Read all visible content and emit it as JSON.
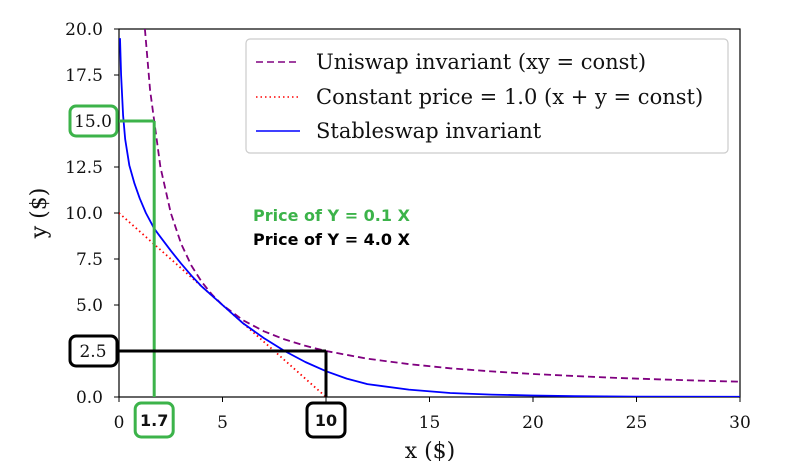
{
  "chart_data": {
    "type": "line",
    "xlabel": "x ($)",
    "ylabel": "y ($)",
    "xlim": [
      0,
      30
    ],
    "ylim": [
      0,
      20
    ],
    "x_ticks": [
      "0",
      "5",
      "10",
      "15",
      "20",
      "25",
      "30"
    ],
    "y_ticks": [
      "0.0",
      "2.5",
      "5.0",
      "7.5",
      "10.0",
      "12.5",
      "15.0",
      "17.5",
      "20.0"
    ],
    "grid": false,
    "legend_position": "top-right",
    "series": [
      {
        "name": "Uniswap invariant (xy = const)",
        "color": "#800080",
        "style": "dashed",
        "x": [
          1.25,
          1.5,
          2,
          2.5,
          3,
          3.5,
          4,
          4.5,
          5,
          6,
          7,
          8,
          9,
          10,
          12,
          14,
          16,
          18,
          20,
          22,
          24,
          26,
          28,
          30
        ],
        "values": [
          20.0,
          16.67,
          12.5,
          10.0,
          8.33,
          7.14,
          6.25,
          5.56,
          5.0,
          4.17,
          3.57,
          3.13,
          2.78,
          2.5,
          2.08,
          1.79,
          1.56,
          1.39,
          1.25,
          1.14,
          1.04,
          0.96,
          0.89,
          0.83
        ]
      },
      {
        "name": "Constant price = 1.0 (x + y = const)",
        "color": "#ff0000",
        "style": "dotted",
        "x": [
          0,
          10
        ],
        "values": [
          10.0,
          0.0
        ]
      },
      {
        "name": "Stableswap invariant",
        "color": "#0000ff",
        "style": "solid",
        "x": [
          0.05,
          0.1,
          0.2,
          0.3,
          0.5,
          0.75,
          1.0,
          1.3,
          1.7,
          2.0,
          2.5,
          3.0,
          3.5,
          4.0,
          5.0,
          6.0,
          7.0,
          8.0,
          9.0,
          10.0,
          11.0,
          12.0,
          14.0,
          16.0,
          18.0,
          20.0,
          22.0,
          25.0,
          30.0
        ],
        "values": [
          19.5,
          17.5,
          15.3,
          14.0,
          12.6,
          11.6,
          10.8,
          10.0,
          9.15,
          8.7,
          7.95,
          7.25,
          6.6,
          6.0,
          5.0,
          4.0,
          3.2,
          2.5,
          1.9,
          1.4,
          1.0,
          0.7,
          0.4,
          0.22,
          0.13,
          0.08,
          0.05,
          0.02,
          0.01
        ]
      }
    ],
    "annotations": [
      {
        "text": "Price of Y = 0.1 X",
        "color": "#3cb34a"
      },
      {
        "text": "Price of Y = 4.0 X",
        "color": "#000000"
      }
    ],
    "highlighted_points": [
      {
        "x": 1.7,
        "y": 15.0,
        "color": "#3cb34a",
        "x_label": "1.7",
        "y_label": "15.0"
      },
      {
        "x": 10,
        "y": 2.5,
        "color": "#000000",
        "x_label": "10",
        "y_label": "2.5"
      }
    ]
  }
}
